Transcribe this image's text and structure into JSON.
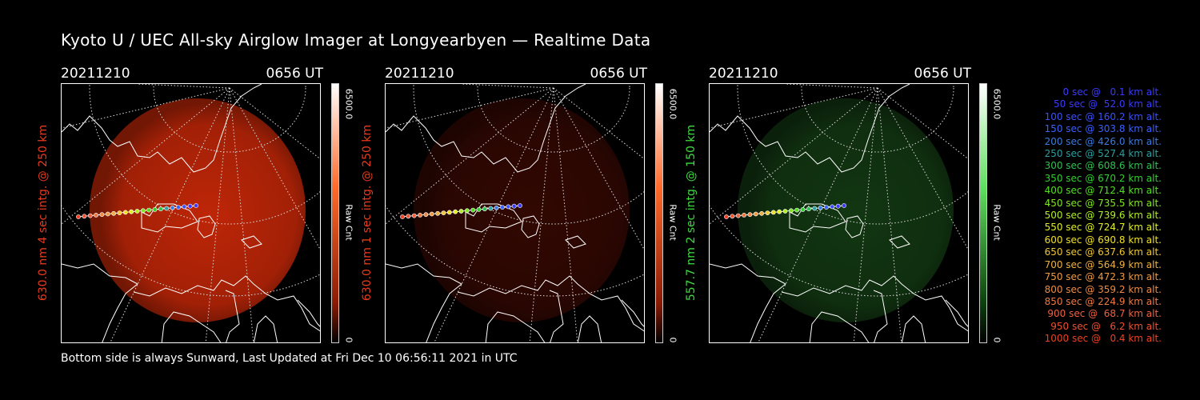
{
  "title": "Kyoto U / UEC All-sky Airglow Imager at Longyearbyen — Realtime Data",
  "footer": "Bottom side is always Sunward, Last Updated at Fri Dec 10 06:56:11 2021 in UTC",
  "panels": [
    {
      "date": "20211210",
      "time": "0656 UT",
      "ylabel": "630.0 nm 4 sec intg. @ 250 km",
      "label_color": "#e83a1e",
      "colorbar_max": "6500.0",
      "colorbar_min": "0",
      "colorbar_label": "Raw Cnt",
      "glow": "#c82808",
      "glow_level": 0.95
    },
    {
      "date": "20211210",
      "time": "0656 UT",
      "ylabel": "630.0 nm 1 sec intg. @ 250 km",
      "label_color": "#e83a1e",
      "colorbar_max": "6500.0",
      "colorbar_min": "0",
      "colorbar_label": "Raw Cnt",
      "glow": "#5a0e04",
      "glow_level": 0.55
    },
    {
      "date": "20211210",
      "time": "0656 UT",
      "ylabel": "557.7 nm 2 sec intg. @ 150 km",
      "label_color": "#3ddc3d",
      "colorbar_max": "6500.0",
      "colorbar_min": "0",
      "colorbar_label": "Raw Cnt",
      "glow": "#1e5a1e",
      "glow_level": 0.6
    }
  ],
  "legend": [
    {
      "text": "0 sec @   0.1 km alt.",
      "color": "#3a3aff"
    },
    {
      "text": "50 sec @  52.0 km alt.",
      "color": "#3a3aff"
    },
    {
      "text": "100 sec @ 160.2 km alt.",
      "color": "#3a50ff"
    },
    {
      "text": "150 sec @ 303.8 km alt.",
      "color": "#3a60ff"
    },
    {
      "text": "200 sec @ 426.0 km alt.",
      "color": "#3a7ae0"
    },
    {
      "text": "250 sec @ 527.4 km alt.",
      "color": "#2aa0a0"
    },
    {
      "text": "300 sec @ 608.6 km alt.",
      "color": "#30c050"
    },
    {
      "text": "350 sec @ 670.2 km alt.",
      "color": "#30d030"
    },
    {
      "text": "400 sec @ 712.4 km alt.",
      "color": "#50e020"
    },
    {
      "text": "450 sec @ 735.5 km alt.",
      "color": "#80e820"
    },
    {
      "text": "500 sec @ 739.6 km alt.",
      "color": "#b0f020"
    },
    {
      "text": "550 sec @ 724.7 km alt.",
      "color": "#e0f020"
    },
    {
      "text": "600 sec @ 690.8 km alt.",
      "color": "#f0e020"
    },
    {
      "text": "650 sec @ 637.6 km alt.",
      "color": "#f0c830"
    },
    {
      "text": "700 sec @ 564.9 km alt.",
      "color": "#f0b040"
    },
    {
      "text": "750 sec @ 472.3 km alt.",
      "color": "#f09a40"
    },
    {
      "text": "800 sec @ 359.2 km alt.",
      "color": "#f08a40"
    },
    {
      "text": "850 sec @ 224.9 km alt.",
      "color": "#f07840"
    },
    {
      "text": "900 sec @  68.7 km alt.",
      "color": "#f06040"
    },
    {
      "text": "950 sec @   6.2 km alt.",
      "color": "#f05030"
    },
    {
      "text": "1000 sec @   0.4 km alt.",
      "color": "#f04020"
    }
  ]
}
